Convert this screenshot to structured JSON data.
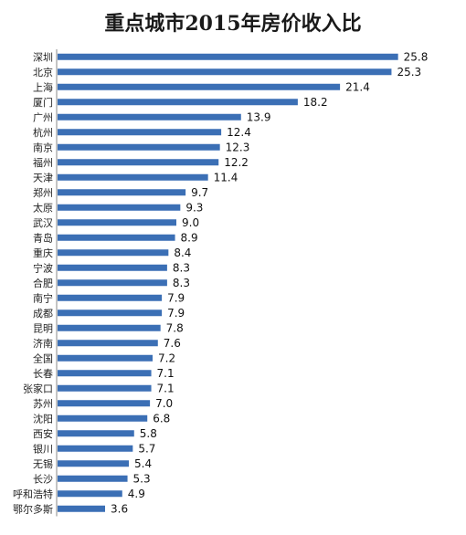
{
  "chart_data": {
    "type": "bar",
    "orientation": "horizontal",
    "title": "重点城市2015年房价收入比",
    "categories": [
      "深圳",
      "北京",
      "上海",
      "厦门",
      "广州",
      "杭州",
      "南京",
      "福州",
      "天津",
      "郑州",
      "太原",
      "武汉",
      "青岛",
      "重庆",
      "宁波",
      "合肥",
      "南宁",
      "成都",
      "昆明",
      "济南",
      "全国",
      "长春",
      "张家口",
      "苏州",
      "沈阳",
      "西安",
      "银川",
      "无锡",
      "长沙",
      "呼和浩特",
      "鄂尔多斯"
    ],
    "values": [
      25.8,
      25.3,
      21.4,
      18.2,
      13.9,
      12.4,
      12.3,
      12.2,
      11.4,
      9.7,
      9.3,
      9.0,
      8.9,
      8.4,
      8.3,
      8.3,
      7.9,
      7.9,
      7.8,
      7.6,
      7.2,
      7.1,
      7.1,
      7.0,
      6.8,
      5.8,
      5.7,
      5.4,
      5.3,
      4.9,
      3.6
    ],
    "value_labels": [
      "25.8",
      "25.3",
      "21.4",
      "18.2",
      "13.9",
      "12.4",
      "12.3",
      "12.2",
      "11.4",
      "9.7",
      "9.3",
      "9.0",
      "8.9",
      "8.4",
      "8.3",
      "8.3",
      "7.9",
      "7.9",
      "7.8",
      "7.6",
      "7.2",
      "7.1",
      "7.1",
      "7.0",
      "6.8",
      "5.8",
      "5.7",
      "5.4",
      "5.3",
      "4.9",
      "3.6"
    ],
    "xlim": [
      0,
      27
    ],
    "grid": false,
    "legend": "none",
    "bar_color": "#3b6fb5"
  }
}
